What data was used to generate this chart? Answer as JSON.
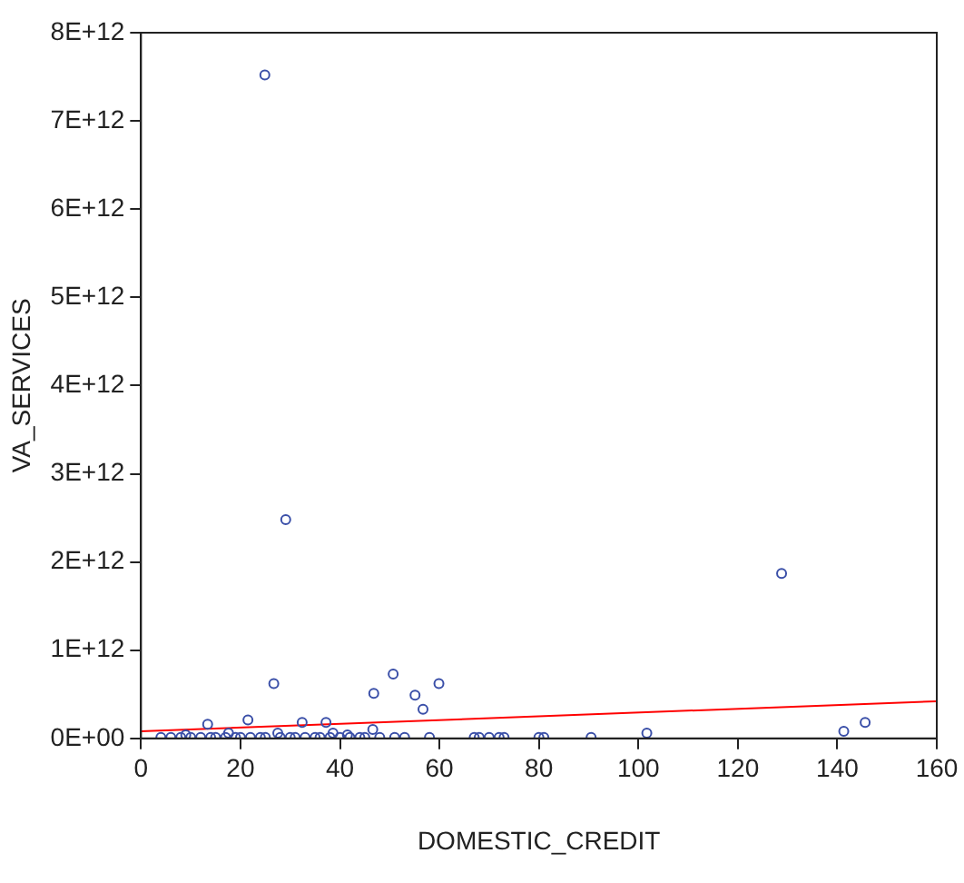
{
  "chart_data": {
    "type": "scatter",
    "xlabel": "DOMESTIC_CREDIT",
    "ylabel": "VA_SERVICES",
    "xlim": [
      0,
      160
    ],
    "xticks": [
      0,
      20,
      40,
      60,
      80,
      100,
      120,
      140,
      160
    ],
    "ylim": [
      0,
      8000000000000.0
    ],
    "yticks": [
      {
        "value": 0,
        "label": "0E+00"
      },
      {
        "value": 1000000000000.0,
        "label": "1E+12"
      },
      {
        "value": 2000000000000.0,
        "label": "2E+12"
      },
      {
        "value": 3000000000000.0,
        "label": "3E+12"
      },
      {
        "value": 4000000000000.0,
        "label": "4E+12"
      },
      {
        "value": 5000000000000.0,
        "label": "5E+12"
      },
      {
        "value": 6000000000000.0,
        "label": "6E+12"
      },
      {
        "value": 7000000000000.0,
        "label": "7E+12"
      },
      {
        "value": 8000000000000.0,
        "label": "8E+12"
      }
    ],
    "grid": false,
    "legend": false,
    "marker": "circle",
    "series": [
      {
        "color": "#3a4fa8",
        "x": [
          24.9,
          29.1,
          128.8,
          26.7,
          13.4,
          21.5,
          32.4,
          37.2,
          46.8,
          50.7,
          55.1,
          56.7,
          59.9,
          46.6,
          17.6,
          9,
          27.5,
          38.6,
          41.5,
          141.3,
          145.6,
          101.7,
          90.5,
          4,
          6,
          8,
          10,
          12,
          14,
          15,
          17,
          19,
          20,
          22,
          24,
          25,
          28,
          30,
          31,
          33,
          35,
          36,
          38,
          40,
          42,
          44,
          45,
          48,
          51,
          53,
          58,
          67,
          68,
          70,
          72,
          73,
          80,
          81
        ],
        "values": [
          7520000000000.0,
          2480000000000.0,
          1870000000000.0,
          620000000000.0,
          160000000000.0,
          210000000000.0,
          180000000000.0,
          180000000000.0,
          510000000000.0,
          730000000000.0,
          490000000000.0,
          330000000000.0,
          620000000000.0,
          100000000000.0,
          60000000000.0,
          40000000000.0,
          60000000000.0,
          60000000000.0,
          40000000000.0,
          80000000000.0,
          180000000000.0,
          60000000000.0,
          10000000000.0,
          10000000000.0,
          10000000000.0,
          10000000000.0,
          10000000000.0,
          10000000000.0,
          10000000000.0,
          10000000000.0,
          10000000000.0,
          10000000000.0,
          10000000000.0,
          10000000000.0,
          10000000000.0,
          10000000000.0,
          10000000000.0,
          10000000000.0,
          10000000000.0,
          10000000000.0,
          10000000000.0,
          10000000000.0,
          10000000000.0,
          10000000000.0,
          10000000000.0,
          10000000000.0,
          10000000000.0,
          10000000000.0,
          10000000000.0,
          10000000000.0,
          10000000000.0,
          10000000000.0,
          10000000000.0,
          10000000000.0,
          10000000000.0,
          10000000000.0,
          10000000000.0,
          10000000000.0
        ]
      },
      {
        "type": "line",
        "marker": "none",
        "color": "#ff0000",
        "x": [
          0,
          160
        ],
        "values": [
          80000000000.0,
          420000000000.0
        ]
      }
    ]
  }
}
